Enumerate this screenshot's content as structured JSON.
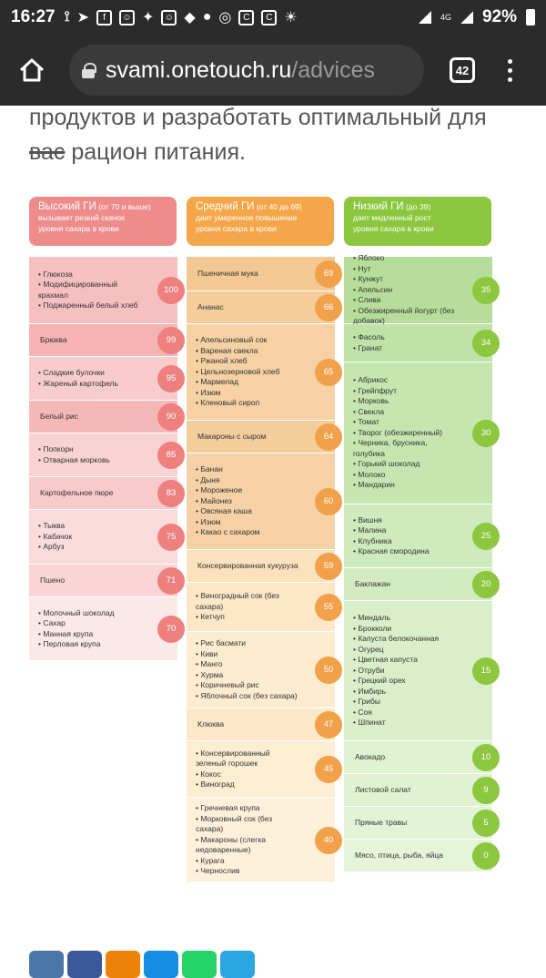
{
  "status": {
    "time": "16:27",
    "net": "4G",
    "battery": "92%"
  },
  "browser": {
    "domain": "svami.onetouch.ru",
    "path": "/advices",
    "tabs": "42"
  },
  "article": {
    "line1": "продуктов и разработать оптимальный для",
    "strike": "вас",
    "line2": " рацион питания."
  },
  "colors": {
    "high": "#ee8c8c",
    "mid": "#f4a74a",
    "low": "#8cc63e",
    "high_badge": "#ef8080",
    "mid_badge": "#f2a14b",
    "low_badge": "#8dc63f"
  },
  "headers": {
    "high": {
      "title": "Высокий ГИ",
      "range": "(от 70 и выше)",
      "desc1": "вызывает резкий скачок",
      "desc2": "уровня сахара в крови"
    },
    "mid": {
      "title": "Средний ГИ",
      "range": "(от 40 до 69)",
      "desc1": "дает умеренное повышение",
      "desc2": "уровня сахара в крови"
    },
    "low": {
      "title": "Низкий ГИ",
      "range": "(до 39)",
      "desc1": "дает медленный рост",
      "desc2": "уровня сахара в крови"
    }
  },
  "high": [
    {
      "items": [
        "Глюкоза",
        "Модифицированный крахмал",
        "Поджаренный белый хлеб"
      ],
      "value": "100"
    },
    {
      "label": "Брюква",
      "value": "99"
    },
    {
      "items": [
        "Сладкие булочки",
        "Жареный картофель"
      ],
      "value": "95"
    },
    {
      "label": "Белый рис",
      "value": "90"
    },
    {
      "items": [
        "Попкорн",
        "Отварная морковь"
      ],
      "value": "85"
    },
    {
      "label": "Картофельное пюре",
      "value": "83"
    },
    {
      "items": [
        "Тыква",
        "Кабачок",
        "Арбуз"
      ],
      "value": "75"
    },
    {
      "label": "Пшено",
      "value": "71"
    },
    {
      "items": [
        "Молочный шоколад",
        "Сахар",
        "Манная крупа",
        "Перловая крупа"
      ],
      "value": "70"
    }
  ],
  "mid": [
    {
      "label": "Пшеничная мука",
      "value": "69"
    },
    {
      "label": "Ананас",
      "value": "66"
    },
    {
      "items": [
        "Апельсиновый сок",
        "Вареная свекла",
        "Ржаной хлеб",
        "Цельнозерновой хлеб",
        "Мармелад",
        "Изюм",
        "Кленовый сироп"
      ],
      "value": "65"
    },
    {
      "label": "Макароны с сыром",
      "value": "64"
    },
    {
      "items": [
        "Банан",
        "Дыня",
        "Мороженое",
        "Майонез",
        "Овсяная каша",
        "Изюм",
        "Какао с сахаром"
      ],
      "value": "60"
    },
    {
      "label": "Консервированная кукуруза",
      "value": "59"
    },
    {
      "items": [
        "Виноградный сок (без сахара)",
        "Кетчуп"
      ],
      "value": "55"
    },
    {
      "items": [
        "Рис басмати",
        "Киви",
        "Манго",
        "Хурма",
        "Коричневый рис",
        "Яблочный сок (без сахара)"
      ],
      "value": "50"
    },
    {
      "label": "Клюква",
      "value": "47"
    },
    {
      "items": [
        "Консервированный зеленый горошек",
        "Кокос",
        "Виноград"
      ],
      "value": "45"
    },
    {
      "items": [
        "Гречневая крупа",
        "Морковный сок (без сахара)",
        "Макароны (слегка недоваренные)",
        "Курага",
        "Чернослив"
      ],
      "value": "40"
    }
  ],
  "low": [
    {
      "items": [
        "Яблоко",
        "Нут",
        "Кунжут",
        "Апельсин",
        "Слива",
        "Обезжиренный йогурт (без добавок)"
      ],
      "value": "35"
    },
    {
      "items": [
        "Фасоль",
        "Гранат"
      ],
      "value": "34"
    },
    {
      "items": [
        "Абрикос",
        "Грейпфрут",
        "Морковь",
        "Свекла",
        "Томат",
        "Творог (обезжиренный)",
        "Черника, брусника, голубика",
        "Горький шоколад",
        "Молоко",
        "Мандарин"
      ],
      "value": "30"
    },
    {
      "items": [
        "Вишня",
        "Малина",
        "Клубника",
        "Красная смородина"
      ],
      "value": "25"
    },
    {
      "label": "Баклажан",
      "value": "20"
    },
    {
      "items": [
        "Миндаль",
        "Брокколи",
        "Капуста белокочанная",
        "Огурец",
        "Цветная капуста",
        "Отруби",
        "Грецкий орех",
        "Имбирь",
        "Грибы",
        "Соя",
        "Шпинат"
      ],
      "value": "15"
    },
    {
      "label": "Авокадо",
      "value": "10"
    },
    {
      "label": "Листовой салат",
      "value": "9"
    },
    {
      "label": "Пряные травы",
      "value": "5"
    },
    {
      "label": "Мясо, птица, рыба, яйца",
      "value": "0"
    }
  ],
  "share": [
    {
      "icon": "vk-icon",
      "color": "#4a76a8"
    },
    {
      "icon": "facebook-icon",
      "color": "#3b5998"
    },
    {
      "icon": "odnoklassniki-icon",
      "color": "#ee8208"
    },
    {
      "icon": "moimir-icon",
      "color": "#168de2"
    },
    {
      "icon": "whatsapp-icon",
      "color": "#25d366"
    },
    {
      "icon": "telegram-icon",
      "color": "#2ca5e0"
    }
  ]
}
